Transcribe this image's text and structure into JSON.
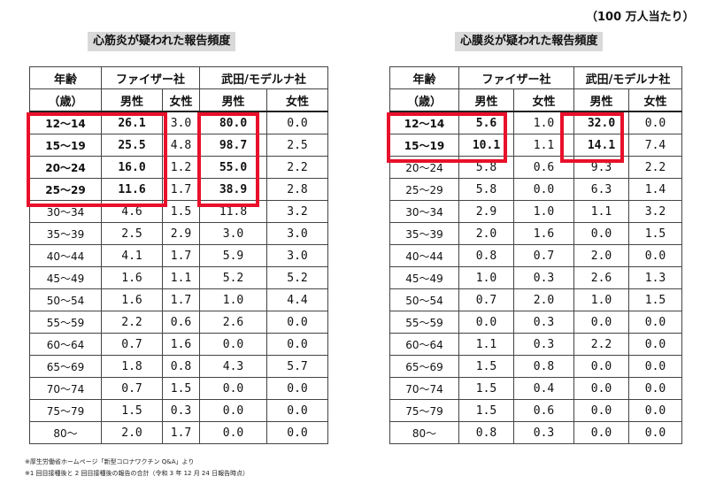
{
  "unit_note": "（100 万人当たり）",
  "footnotes": [
    "※厚生労働省ホームページ「新型コロナワクチン Q&A」より",
    "※1 回目接種後と 2 回目接種後の報告の合計（令和 3 年 12 月 24 日報告時点）"
  ],
  "tables": [
    {
      "title": "心筋炎が疑われた報告頻度",
      "header": {
        "age_top": "年齢",
        "age_bottom": "（歳）",
        "pfizer": "ファイザー社",
        "moderna": "武田/モデルナ社",
        "male": "男性",
        "female": "女性"
      },
      "rows": [
        {
          "age": "12～14",
          "pf_m": "26.1",
          "pf_f": "3.0",
          "md_m": "80.0",
          "md_f": "0.0"
        },
        {
          "age": "15～19",
          "pf_m": "25.5",
          "pf_f": "4.8",
          "md_m": "98.7",
          "md_f": "2.5"
        },
        {
          "age": "20～24",
          "pf_m": "16.0",
          "pf_f": "1.2",
          "md_m": "55.0",
          "md_f": "2.2"
        },
        {
          "age": "25～29",
          "pf_m": "11.6",
          "pf_f": "1.7",
          "md_m": "38.9",
          "md_f": "2.8"
        },
        {
          "age": "30～34",
          "pf_m": "4.6",
          "pf_f": "1.5",
          "md_m": "11.8",
          "md_f": "3.2"
        },
        {
          "age": "35～39",
          "pf_m": "2.5",
          "pf_f": "2.9",
          "md_m": "3.0",
          "md_f": "3.0"
        },
        {
          "age": "40～44",
          "pf_m": "4.1",
          "pf_f": "1.7",
          "md_m": "5.9",
          "md_f": "3.0"
        },
        {
          "age": "45～49",
          "pf_m": "1.6",
          "pf_f": "1.1",
          "md_m": "5.2",
          "md_f": "5.2"
        },
        {
          "age": "50～54",
          "pf_m": "1.6",
          "pf_f": "1.7",
          "md_m": "1.0",
          "md_f": "4.4"
        },
        {
          "age": "55～59",
          "pf_m": "2.2",
          "pf_f": "0.6",
          "md_m": "2.6",
          "md_f": "0.0"
        },
        {
          "age": "60～64",
          "pf_m": "0.7",
          "pf_f": "1.6",
          "md_m": "0.0",
          "md_f": "0.0"
        },
        {
          "age": "65～69",
          "pf_m": "1.8",
          "pf_f": "0.8",
          "md_m": "4.3",
          "md_f": "5.7"
        },
        {
          "age": "70～74",
          "pf_m": "0.7",
          "pf_f": "1.5",
          "md_m": "0.0",
          "md_f": "0.0"
        },
        {
          "age": "75～79",
          "pf_m": "1.5",
          "pf_f": "0.3",
          "md_m": "0.0",
          "md_f": "0.0"
        },
        {
          "age": "80～",
          "pf_m": "2.0",
          "pf_f": "1.7",
          "md_m": "0.0",
          "md_f": "0.0"
        }
      ]
    },
    {
      "title": "心膜炎が疑われた報告頻度",
      "header": {
        "age_top": "年齢",
        "age_bottom": "（歳）",
        "pfizer": "ファイザー社",
        "moderna": "武田/モデルナ社",
        "male": "男性",
        "female": "女性"
      },
      "rows": [
        {
          "age": "12～14",
          "pf_m": "5.6",
          "pf_f": "1.0",
          "md_m": "32.0",
          "md_f": "0.0"
        },
        {
          "age": "15～19",
          "pf_m": "10.1",
          "pf_f": "1.1",
          "md_m": "14.1",
          "md_f": "7.4"
        },
        {
          "age": "20～24",
          "pf_m": "5.8",
          "pf_f": "0.6",
          "md_m": "9.3",
          "md_f": "2.2"
        },
        {
          "age": "25～29",
          "pf_m": "5.8",
          "pf_f": "0.0",
          "md_m": "6.3",
          "md_f": "1.4"
        },
        {
          "age": "30～34",
          "pf_m": "2.9",
          "pf_f": "1.0",
          "md_m": "1.1",
          "md_f": "3.2"
        },
        {
          "age": "35～39",
          "pf_m": "2.0",
          "pf_f": "1.6",
          "md_m": "0.0",
          "md_f": "1.5"
        },
        {
          "age": "40～44",
          "pf_m": "0.8",
          "pf_f": "0.7",
          "md_m": "2.0",
          "md_f": "0.0"
        },
        {
          "age": "45～49",
          "pf_m": "1.0",
          "pf_f": "0.3",
          "md_m": "2.6",
          "md_f": "1.3"
        },
        {
          "age": "50～54",
          "pf_m": "0.7",
          "pf_f": "2.0",
          "md_m": "1.0",
          "md_f": "1.5"
        },
        {
          "age": "55～59",
          "pf_m": "0.0",
          "pf_f": "0.3",
          "md_m": "0.0",
          "md_f": "0.0"
        },
        {
          "age": "60～64",
          "pf_m": "1.1",
          "pf_f": "0.3",
          "md_m": "2.2",
          "md_f": "0.0"
        },
        {
          "age": "65～69",
          "pf_m": "1.5",
          "pf_f": "0.8",
          "md_m": "0.0",
          "md_f": "0.0"
        },
        {
          "age": "70～74",
          "pf_m": "1.5",
          "pf_f": "0.4",
          "md_m": "0.0",
          "md_f": "0.0"
        },
        {
          "age": "75～79",
          "pf_m": "1.5",
          "pf_f": "0.6",
          "md_m": "0.0",
          "md_f": "0.0"
        },
        {
          "age": "80～",
          "pf_m": "0.8",
          "pf_f": "0.3",
          "md_m": "0.0",
          "md_f": "0.0"
        }
      ]
    }
  ],
  "highlight_color": "#e8102a"
}
